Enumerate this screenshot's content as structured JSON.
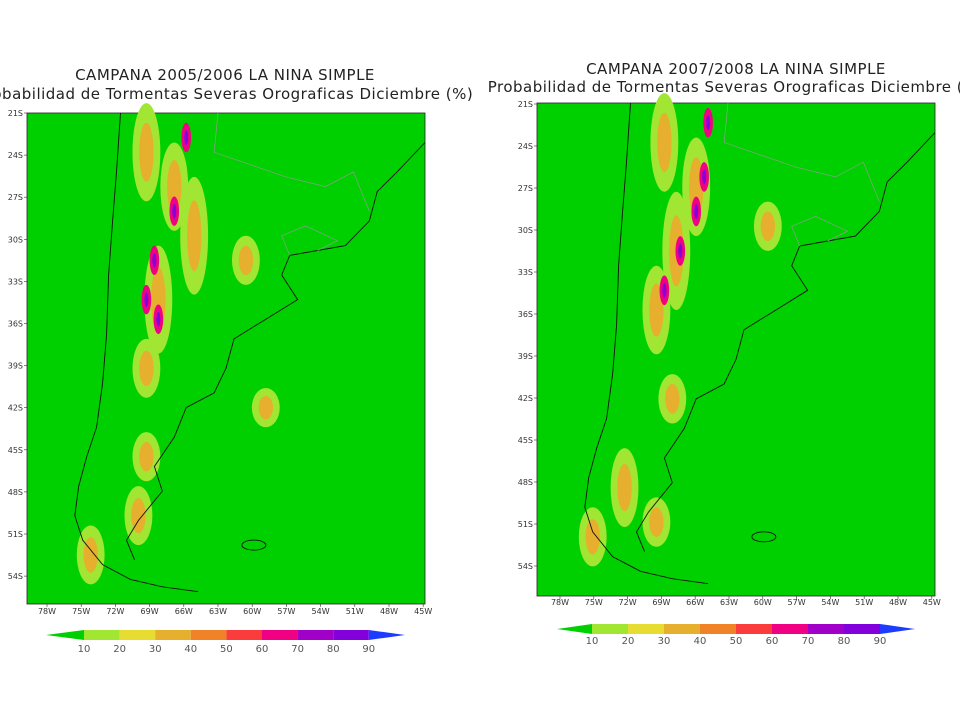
{
  "panels": [
    {
      "title": "CAMPANA 2005/2006 LA NINA SIMPLE",
      "subtitle": "Probabilidad de Tormentas Severas Orograficas Diciembre (%)",
      "lat_labels": [
        "21S",
        "24S",
        "27S",
        "30S",
        "33S",
        "36S",
        "39S",
        "42S",
        "45S",
        "48S",
        "51S",
        "54S"
      ],
      "lon_labels": [
        "78W",
        "75W",
        "72W",
        "69W",
        "66W",
        "63W",
        "60W",
        "57W",
        "54W",
        "51W",
        "48W",
        "45W"
      ],
      "colorbar_ticks": [
        10,
        20,
        30,
        40,
        50,
        60,
        70,
        80,
        90
      ]
    },
    {
      "title": "CAMPANA 2007/2008 LA NINA SIMPLE",
      "subtitle": "Probabilidad de Tormentas Severas Orograficas Diciembre (%)",
      "lat_labels": [
        "21S",
        "24S",
        "27S",
        "30S",
        "33S",
        "36S",
        "39S",
        "42S",
        "45S",
        "48S",
        "51S",
        "54S"
      ],
      "lon_labels": [
        "78W",
        "75W",
        "72W",
        "69W",
        "66W",
        "63W",
        "60W",
        "57W",
        "54W",
        "51W",
        "48W",
        "45W"
      ],
      "colorbar_ticks": [
        10,
        20,
        30,
        40,
        50,
        60,
        70,
        80,
        90
      ]
    }
  ]
}
